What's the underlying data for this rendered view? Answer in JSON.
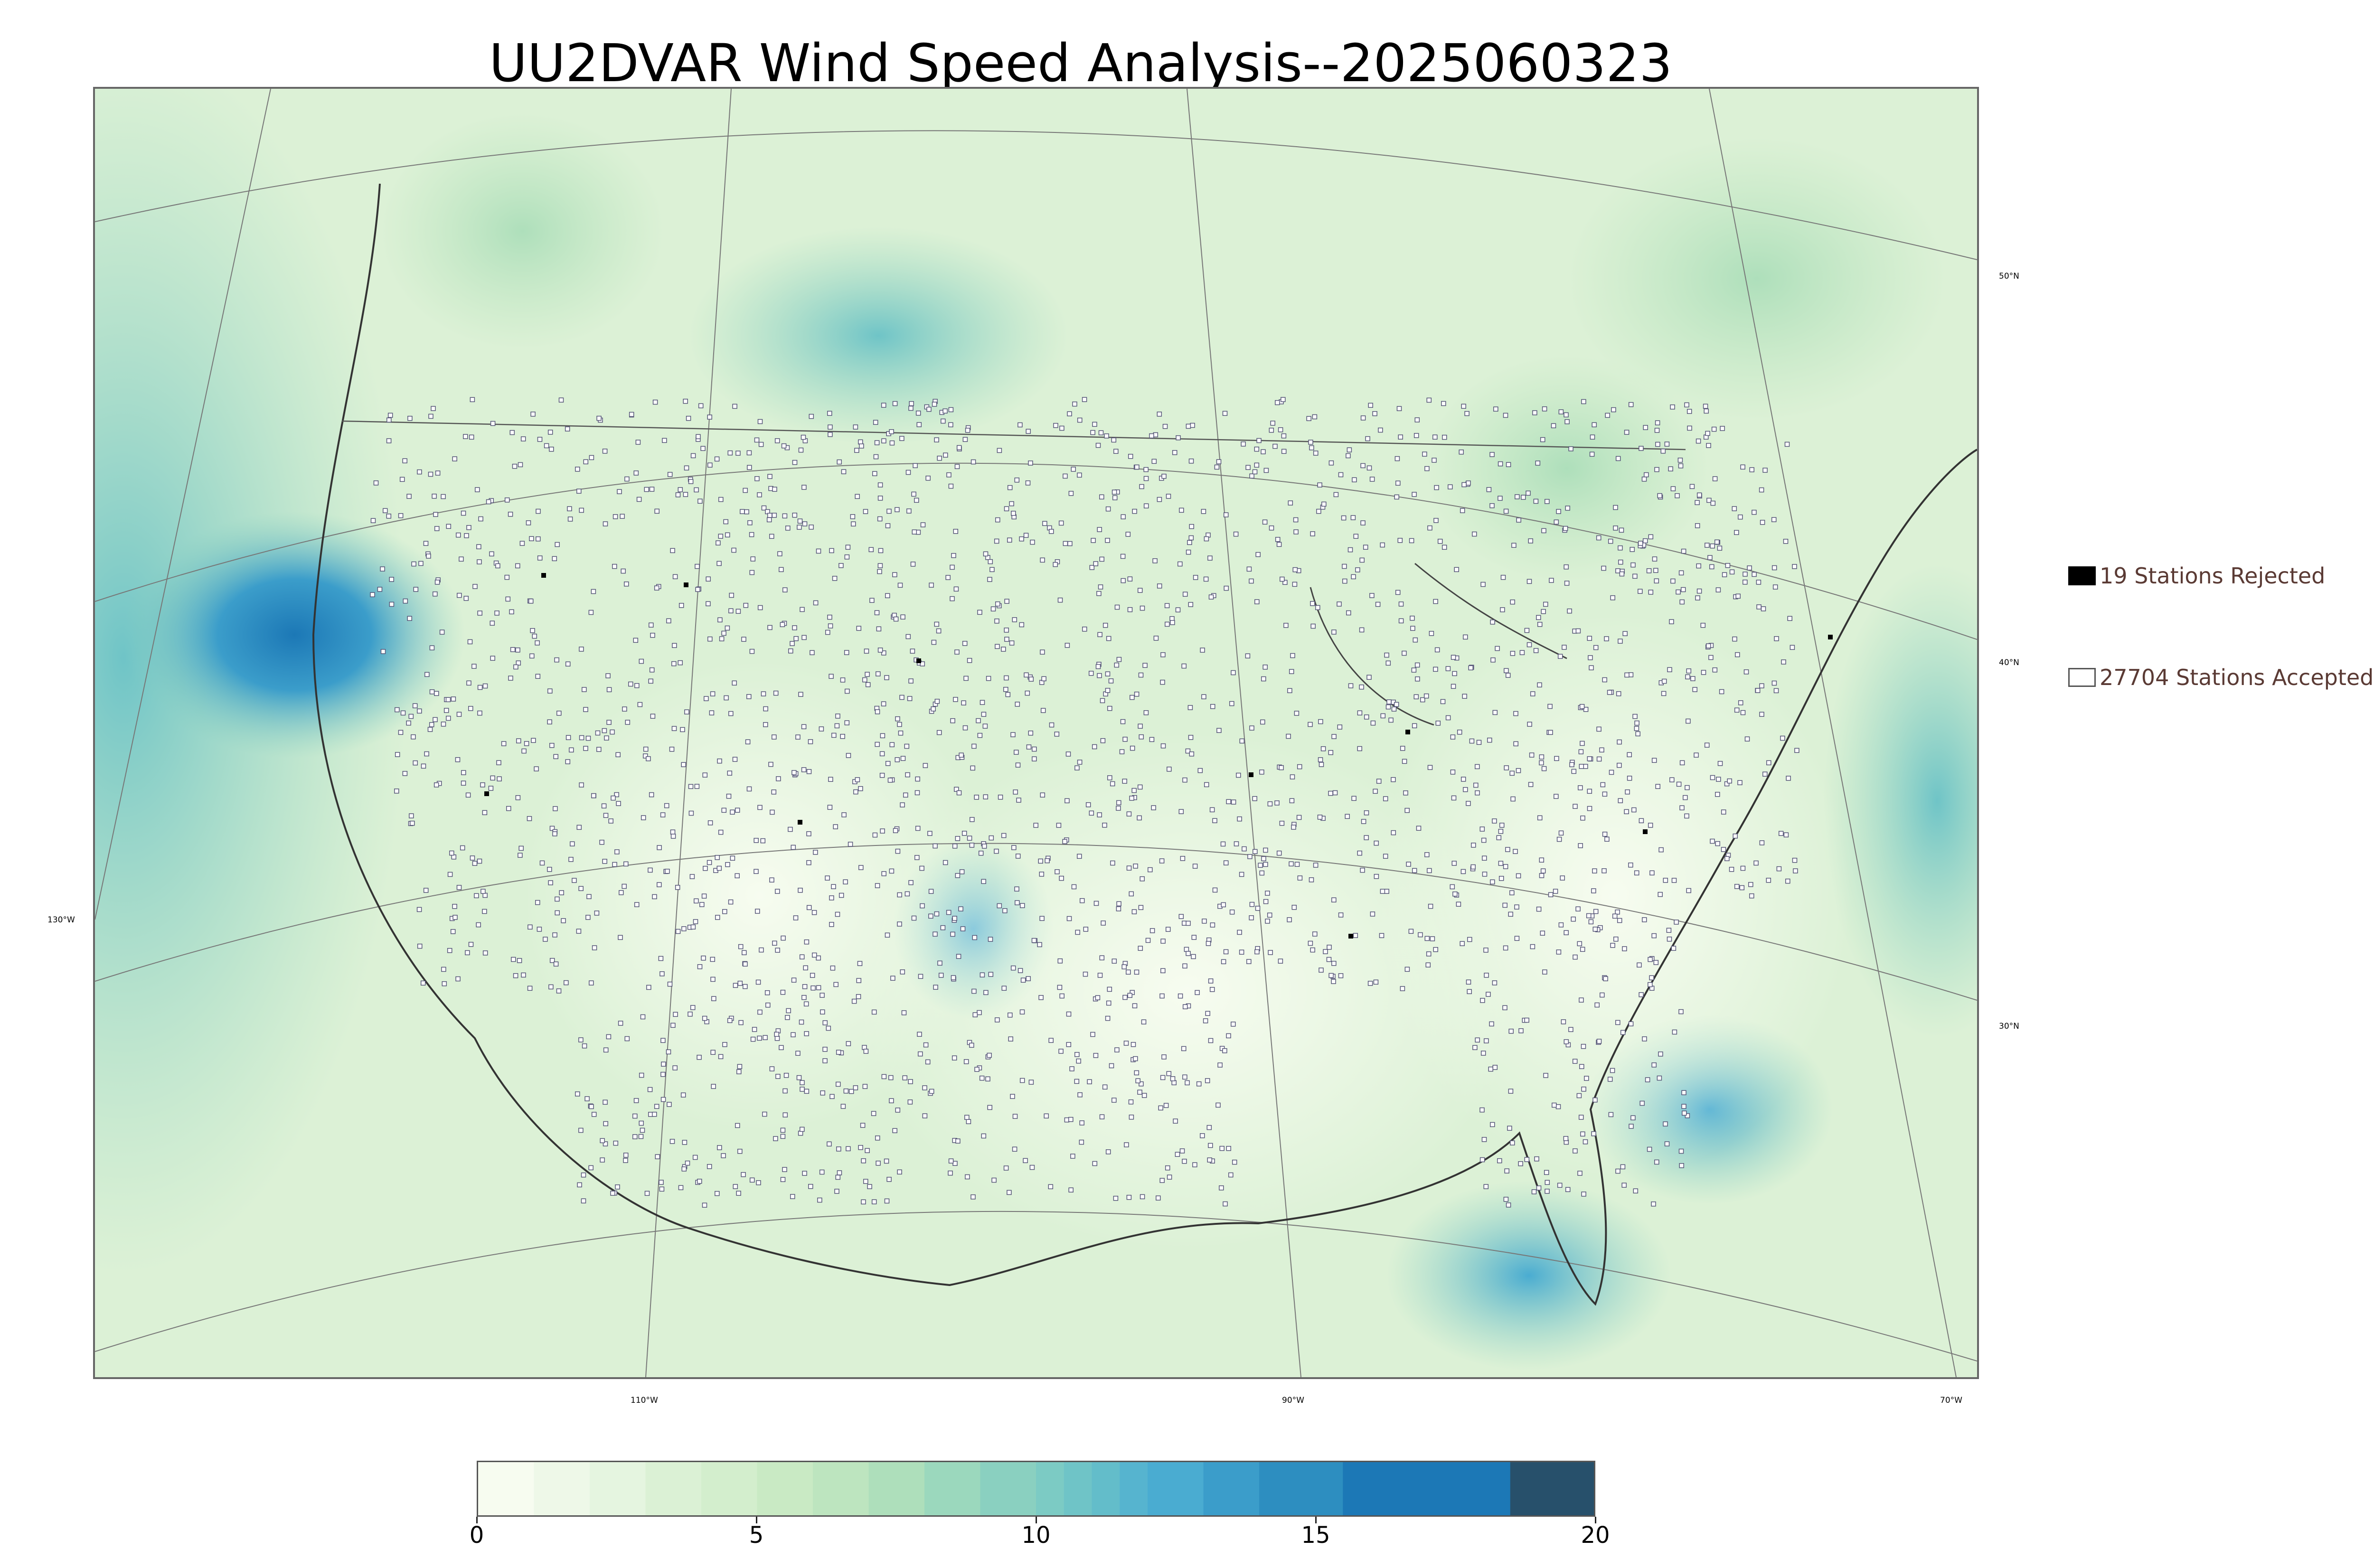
{
  "title": "UU2DVAR Wind Speed Analysis--2025060323",
  "map": {
    "longitude_labels": [
      {
        "id": "lon-110",
        "text": "110°W"
      },
      {
        "id": "lon-90",
        "text": "90°W"
      },
      {
        "id": "lon-70",
        "text": "70°W"
      },
      {
        "id": "lon-130",
        "text": "130°W"
      }
    ],
    "latitude_labels": [
      {
        "id": "lat-50",
        "text": "50°N"
      },
      {
        "id": "lat-40",
        "text": "40°N"
      },
      {
        "id": "lat-30",
        "text": "30°N"
      }
    ],
    "colors": {
      "land_base": "#dff2d9",
      "high_wind": "#1c78b6",
      "station_marker": "#555577",
      "rejected_marker": "#000000"
    }
  },
  "legend": {
    "rejected_label": "19 Stations Rejected",
    "accepted_label": "27704 Stations Accepted"
  },
  "colorbar": {
    "min": 0,
    "max": 20,
    "ticks": [
      {
        "value": 0,
        "label": "0"
      },
      {
        "value": 5,
        "label": "5"
      },
      {
        "value": 10,
        "label": "10"
      },
      {
        "value": 15,
        "label": "15"
      },
      {
        "value": 20,
        "label": "20"
      }
    ],
    "bins": [
      {
        "from": 0,
        "to": 1,
        "color": "#f7fcf0"
      },
      {
        "from": 1,
        "to": 2,
        "color": "#eef8e8"
      },
      {
        "from": 2,
        "to": 3,
        "color": "#e5f5e0"
      },
      {
        "from": 3,
        "to": 4,
        "color": "#dbf1d5"
      },
      {
        "from": 4,
        "to": 5,
        "color": "#d3eecd"
      },
      {
        "from": 5,
        "to": 6,
        "color": "#c9eac4"
      },
      {
        "from": 6,
        "to": 7,
        "color": "#bde5bf"
      },
      {
        "from": 7,
        "to": 8,
        "color": "#aedfbb"
      },
      {
        "from": 8,
        "to": 9,
        "color": "#9bd8bd"
      },
      {
        "from": 9,
        "to": 10,
        "color": "#8ad0c0"
      },
      {
        "from": 10,
        "to": 10.5,
        "color": "#7ccbc4"
      },
      {
        "from": 10.5,
        "to": 11,
        "color": "#6fc4c7"
      },
      {
        "from": 11,
        "to": 11.5,
        "color": "#63bdca"
      },
      {
        "from": 11.5,
        "to": 12,
        "color": "#56b4cf"
      },
      {
        "from": 12,
        "to": 13,
        "color": "#4aacd1"
      },
      {
        "from": 13,
        "to": 14,
        "color": "#3b9dca"
      },
      {
        "from": 14,
        "to": 15.5,
        "color": "#2d8ec0"
      },
      {
        "from": 15.5,
        "to": 18.5,
        "color": "#1c78b6"
      },
      {
        "from": 18.5,
        "to": 20,
        "color": "#27506b"
      }
    ]
  }
}
